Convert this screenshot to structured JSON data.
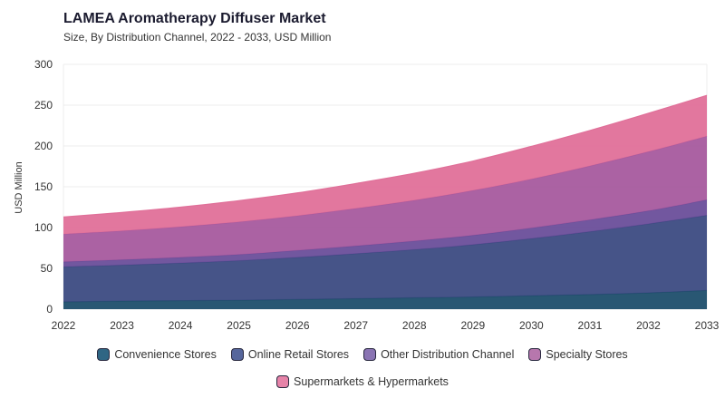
{
  "chart_data": {
    "type": "area",
    "stacked": true,
    "title": "LAMEA Aromatherapy Diffuser Market",
    "subtitle": "Size, By Distribution Channel, 2022 - 2033, USD Million",
    "xlabel": "",
    "ylabel": "USD Million",
    "ylim": [
      0,
      300
    ],
    "yticks": [
      0,
      50,
      100,
      150,
      200,
      250,
      300
    ],
    "grid": true,
    "legend_position": "bottom",
    "x": [
      "2022",
      "2023",
      "2024",
      "2025",
      "2026",
      "2027",
      "2028",
      "2029",
      "2030",
      "2031",
      "2032",
      "2033"
    ],
    "series": [
      {
        "name": "Convenience Stores",
        "color": "#1d4e6b",
        "values": [
          9,
          10,
          10.5,
          11,
          12,
          13,
          14,
          15,
          16.5,
          18,
          20,
          23
        ]
      },
      {
        "name": "Online Retail Stores",
        "color": "#3c4b82",
        "values": [
          43,
          44,
          46,
          48.5,
          51.5,
          55,
          59,
          64,
          70,
          77,
          84.5,
          92
        ]
      },
      {
        "name": "Other Distribution Channel",
        "color": "#6a4e9a",
        "values": [
          6,
          6.5,
          7,
          7.5,
          8.5,
          9.5,
          10.5,
          11.5,
          13,
          14.5,
          16,
          19
        ]
      },
      {
        "name": "Specialty Stores",
        "color": "#a75a9e",
        "values": [
          34,
          35.5,
          37.5,
          40,
          42.5,
          46,
          50,
          55,
          60,
          66,
          72.5,
          78
        ]
      },
      {
        "name": "Supermarkets & Hypermarkets",
        "color": "#e07099",
        "values": [
          21,
          22.5,
          24,
          26,
          28,
          30.5,
          33,
          36,
          40,
          43.5,
          47,
          50
        ]
      }
    ]
  }
}
